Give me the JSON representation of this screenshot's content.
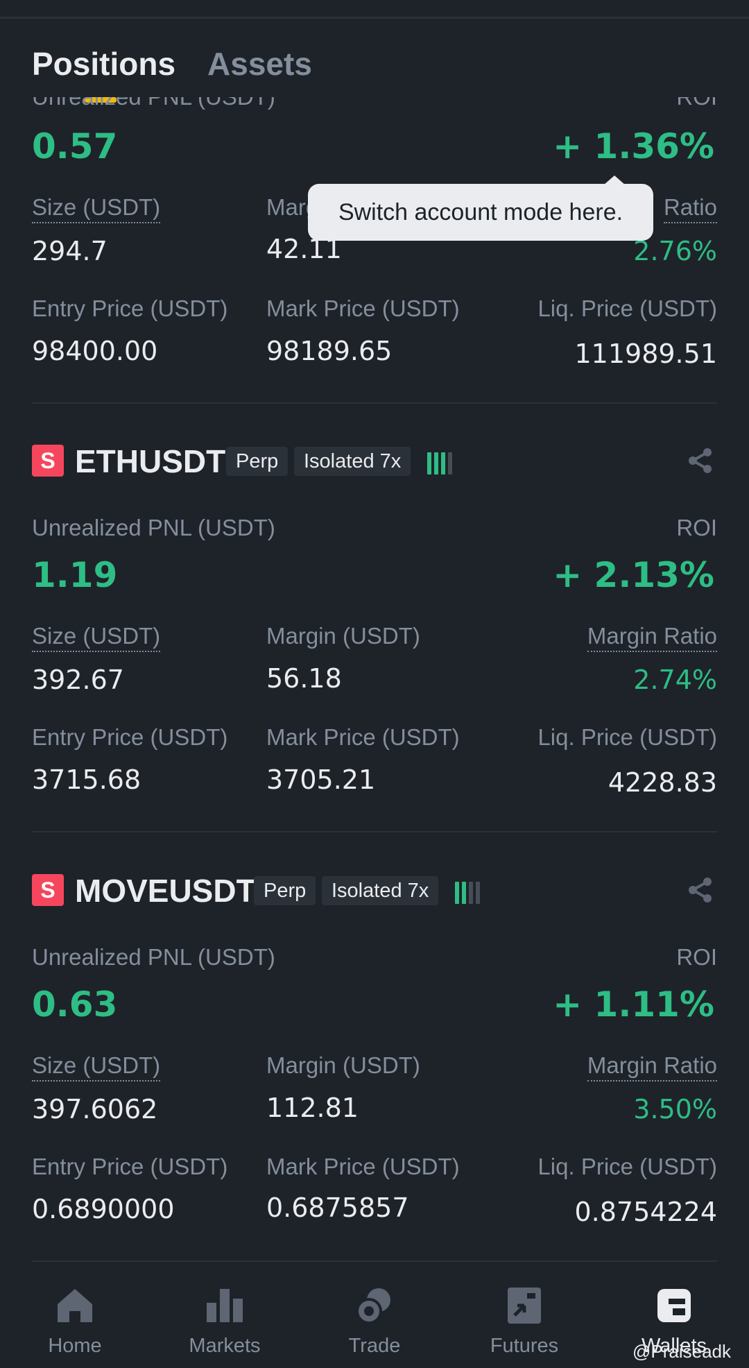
{
  "tabs": [
    {
      "label": "Positions"
    },
    {
      "label": "Assets"
    }
  ],
  "tooltip": {
    "text": "Switch account mode here."
  },
  "labels": {
    "unrealized_pnl": "Unrealized PNL (USDT)",
    "unrealized_pnl_partial": "Unrealized PNL (USDT)",
    "roi": "ROI",
    "size": "Size (USDT)",
    "margin": "Margin (USDT)",
    "margin_partial": "Marg",
    "margin_ratio": "Margin Ratio",
    "margin_ratio_partial": "Ratio",
    "entry_price": "Entry Price (USDT)",
    "mark_price": "Mark Price (USDT)",
    "liq_price": "Liq. Price (USDT)"
  },
  "positions": [
    {
      "pnl": "0.57",
      "roi": "+ 1.36%",
      "size": "294.7",
      "margin": "42.11",
      "margin_ratio": "2.76%",
      "entry_price": "98400.00",
      "mark_price": "98189.65",
      "liq_price": "111989.51"
    },
    {
      "side_badge": "S",
      "symbol": "ETHUSDT",
      "type": "Perp",
      "mode": "Isolated 7x",
      "risk_bars_filled": 3,
      "pnl": "1.19",
      "roi": "+ 2.13%",
      "size": "392.67",
      "margin": "56.18",
      "margin_ratio": "2.74%",
      "entry_price": "3715.68",
      "mark_price": "3705.21",
      "liq_price": "4228.83"
    },
    {
      "side_badge": "S",
      "symbol": "MOVEUSDT",
      "type": "Perp",
      "mode": "Isolated 7x",
      "risk_bars_filled": 2,
      "pnl": "0.63",
      "roi": "+ 1.11%",
      "size": "397.6062",
      "margin": "112.81",
      "margin_ratio": "3.50%",
      "entry_price": "0.6890000",
      "mark_price": "0.6875857",
      "liq_price": "0.8754224"
    }
  ],
  "nav": [
    {
      "label": "Home",
      "icon": "home-icon"
    },
    {
      "label": "Markets",
      "icon": "bar-chart-icon"
    },
    {
      "label": "Trade",
      "icon": "trade-icon"
    },
    {
      "label": "Futures",
      "icon": "futures-icon"
    },
    {
      "label": "Wallets",
      "icon": "wallet-icon"
    }
  ],
  "watermark": "@Praiseadk",
  "colors": {
    "background": "#1e2329",
    "green": "#2ebd85",
    "red": "#f6465d",
    "accent": "#f0b90b"
  }
}
